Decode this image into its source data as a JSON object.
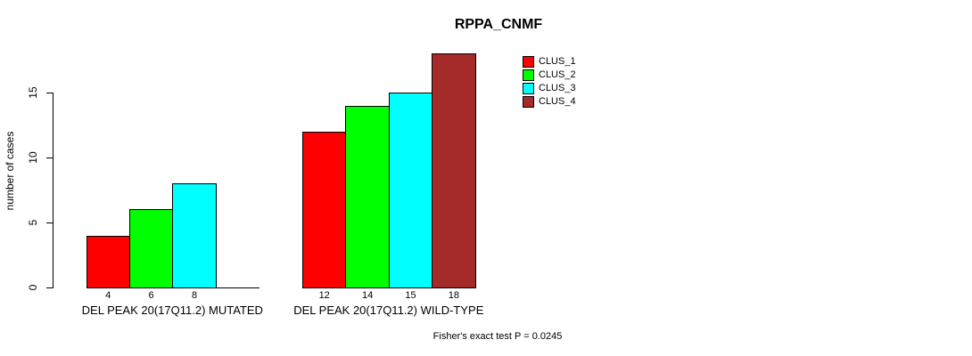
{
  "chart_data": {
    "type": "bar",
    "title": "RPPA_CNMF",
    "ylabel": "number of cases",
    "xlabel": "",
    "ylim": [
      0,
      15
    ],
    "yticks": [
      0,
      5,
      10,
      15
    ],
    "grid": false,
    "legend_position": "top-right-inside",
    "background": "#ffffff",
    "axis_color": "#000000",
    "categories": [
      "DEL PEAK 20(17Q11.2) MUTATED",
      "DEL PEAK 20(17Q11.2) WILD-TYPE"
    ],
    "series": [
      {
        "name": "CLUS_1",
        "color": "#ff0000",
        "values": [
          4,
          12
        ]
      },
      {
        "name": "CLUS_2",
        "color": "#00ff00",
        "values": [
          6,
          14
        ]
      },
      {
        "name": "CLUS_3",
        "color": "#00ffff",
        "values": [
          8,
          15
        ]
      },
      {
        "name": "CLUS_4",
        "color": "#a52a2a",
        "values": [
          0,
          18
        ]
      }
    ],
    "bar_value_labels": [
      [
        4,
        6,
        8,
        null
      ],
      [
        12,
        14,
        15,
        18
      ]
    ],
    "annotation": "Fisher's exact test P = 0.0245"
  }
}
